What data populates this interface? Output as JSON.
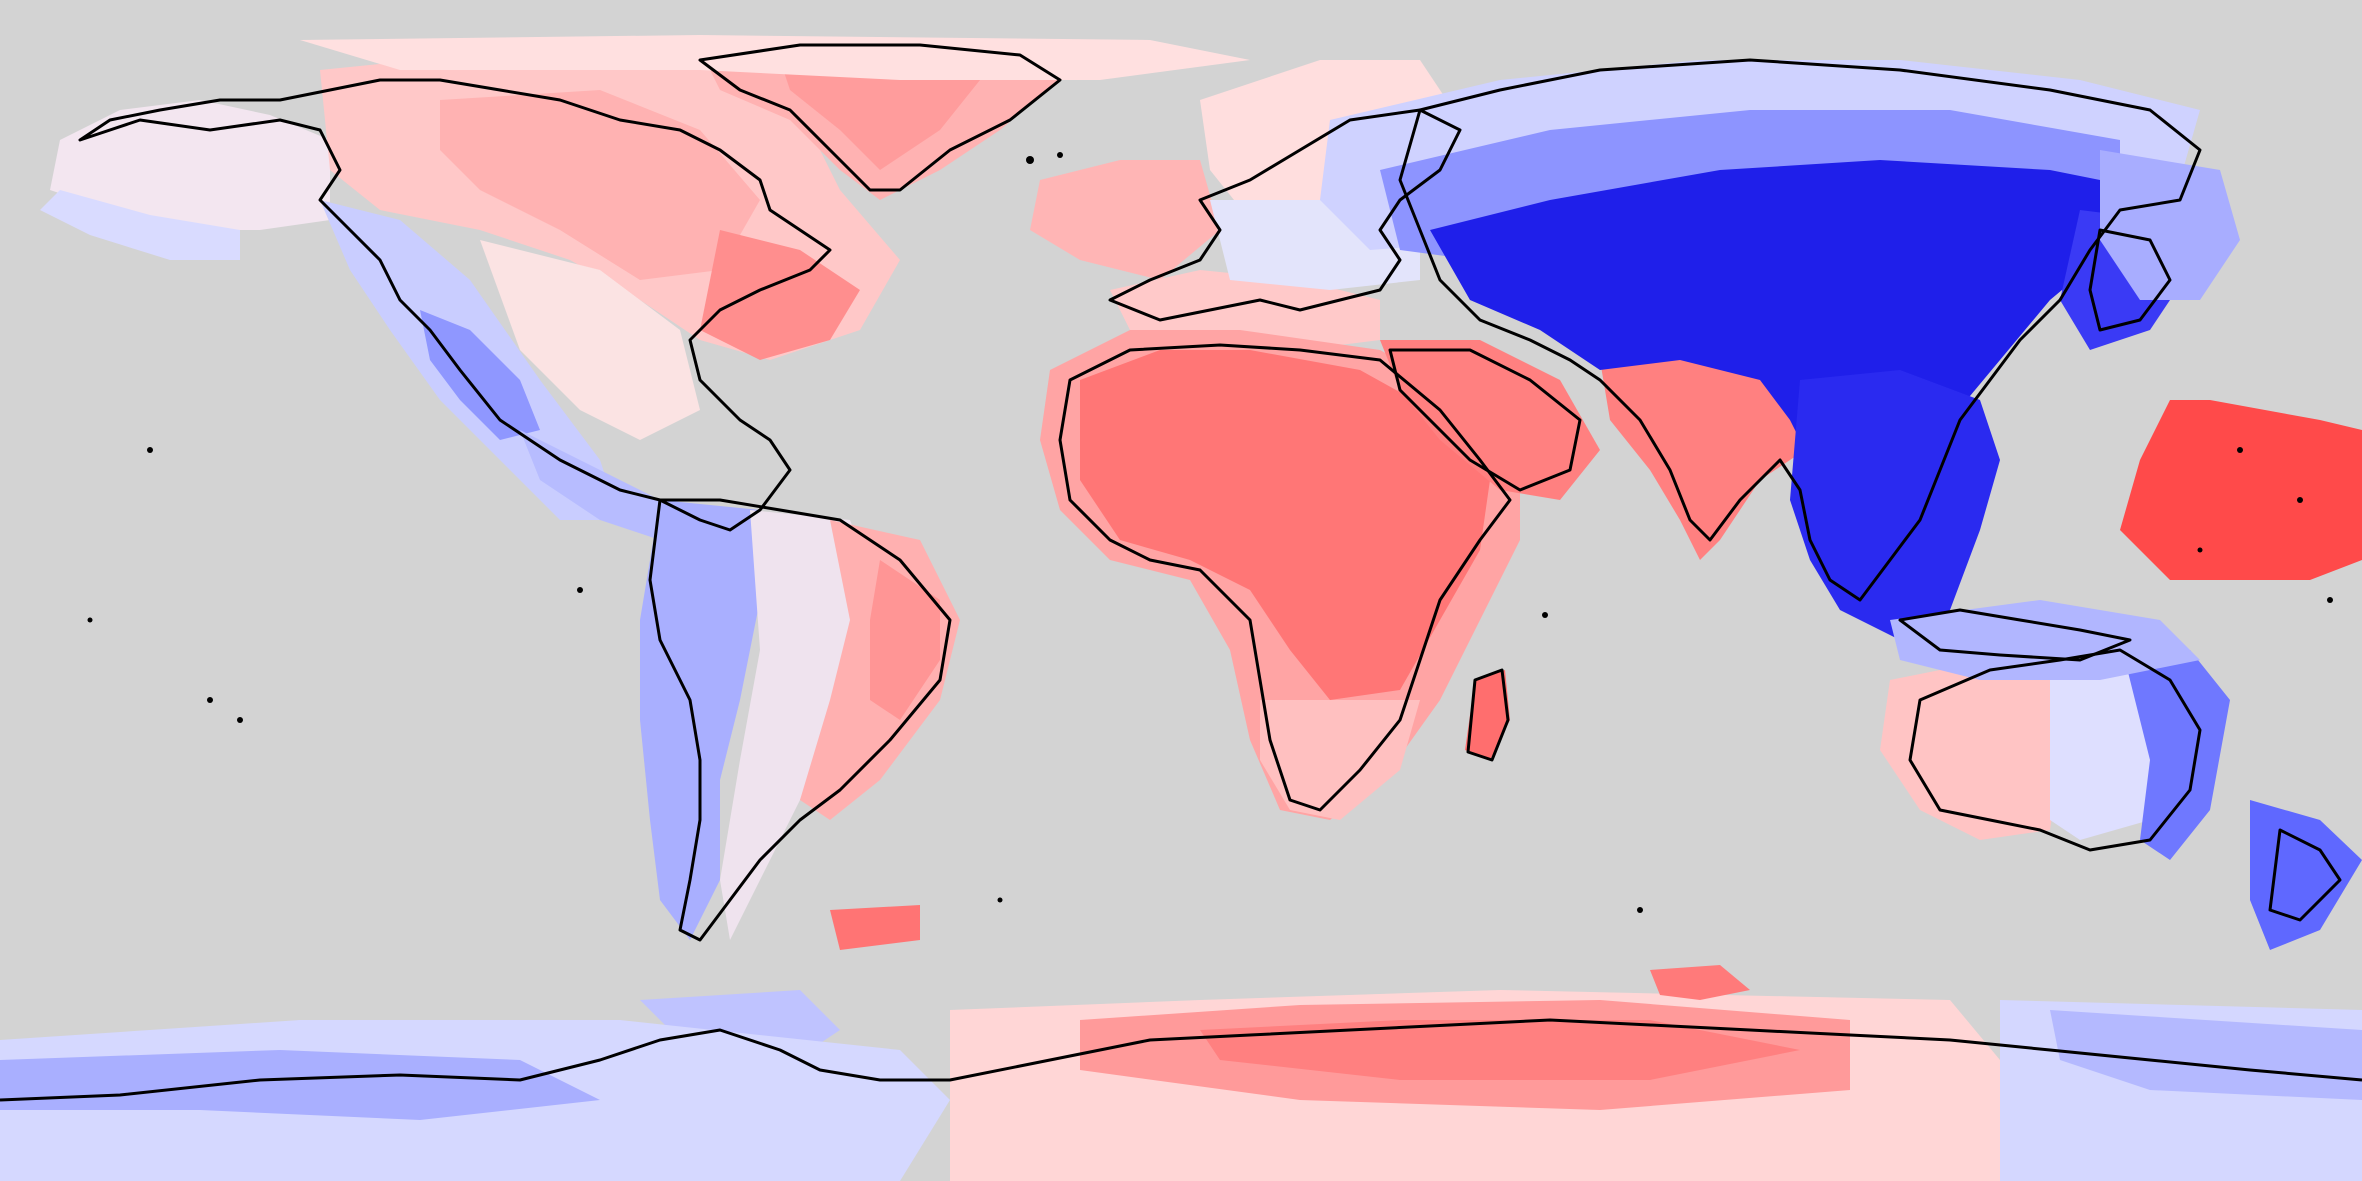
{
  "map": {
    "projection": "equirectangular",
    "ocean_color": "#d3d3d3",
    "coastline_color": "#000000",
    "color_scale": {
      "type": "diverging",
      "negative": [
        "#e6e8ff",
        "#c8ccff",
        "#a6adff",
        "#7f88ff",
        "#4a55ff",
        "#0000ee"
      ],
      "neutral": "#f5e4e4",
      "positive": [
        "#ffe2e2",
        "#ffc4c4",
        "#ff9c9c",
        "#ff7a7a",
        "#ff5050"
      ]
    }
  }
}
